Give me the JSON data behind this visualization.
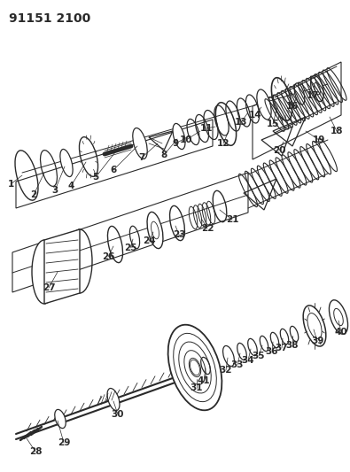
{
  "title": "91151 2100",
  "bg_color": "#ffffff",
  "diagram_color": "#2a2a2a",
  "figsize": [
    3.95,
    5.33
  ],
  "dpi": 100
}
